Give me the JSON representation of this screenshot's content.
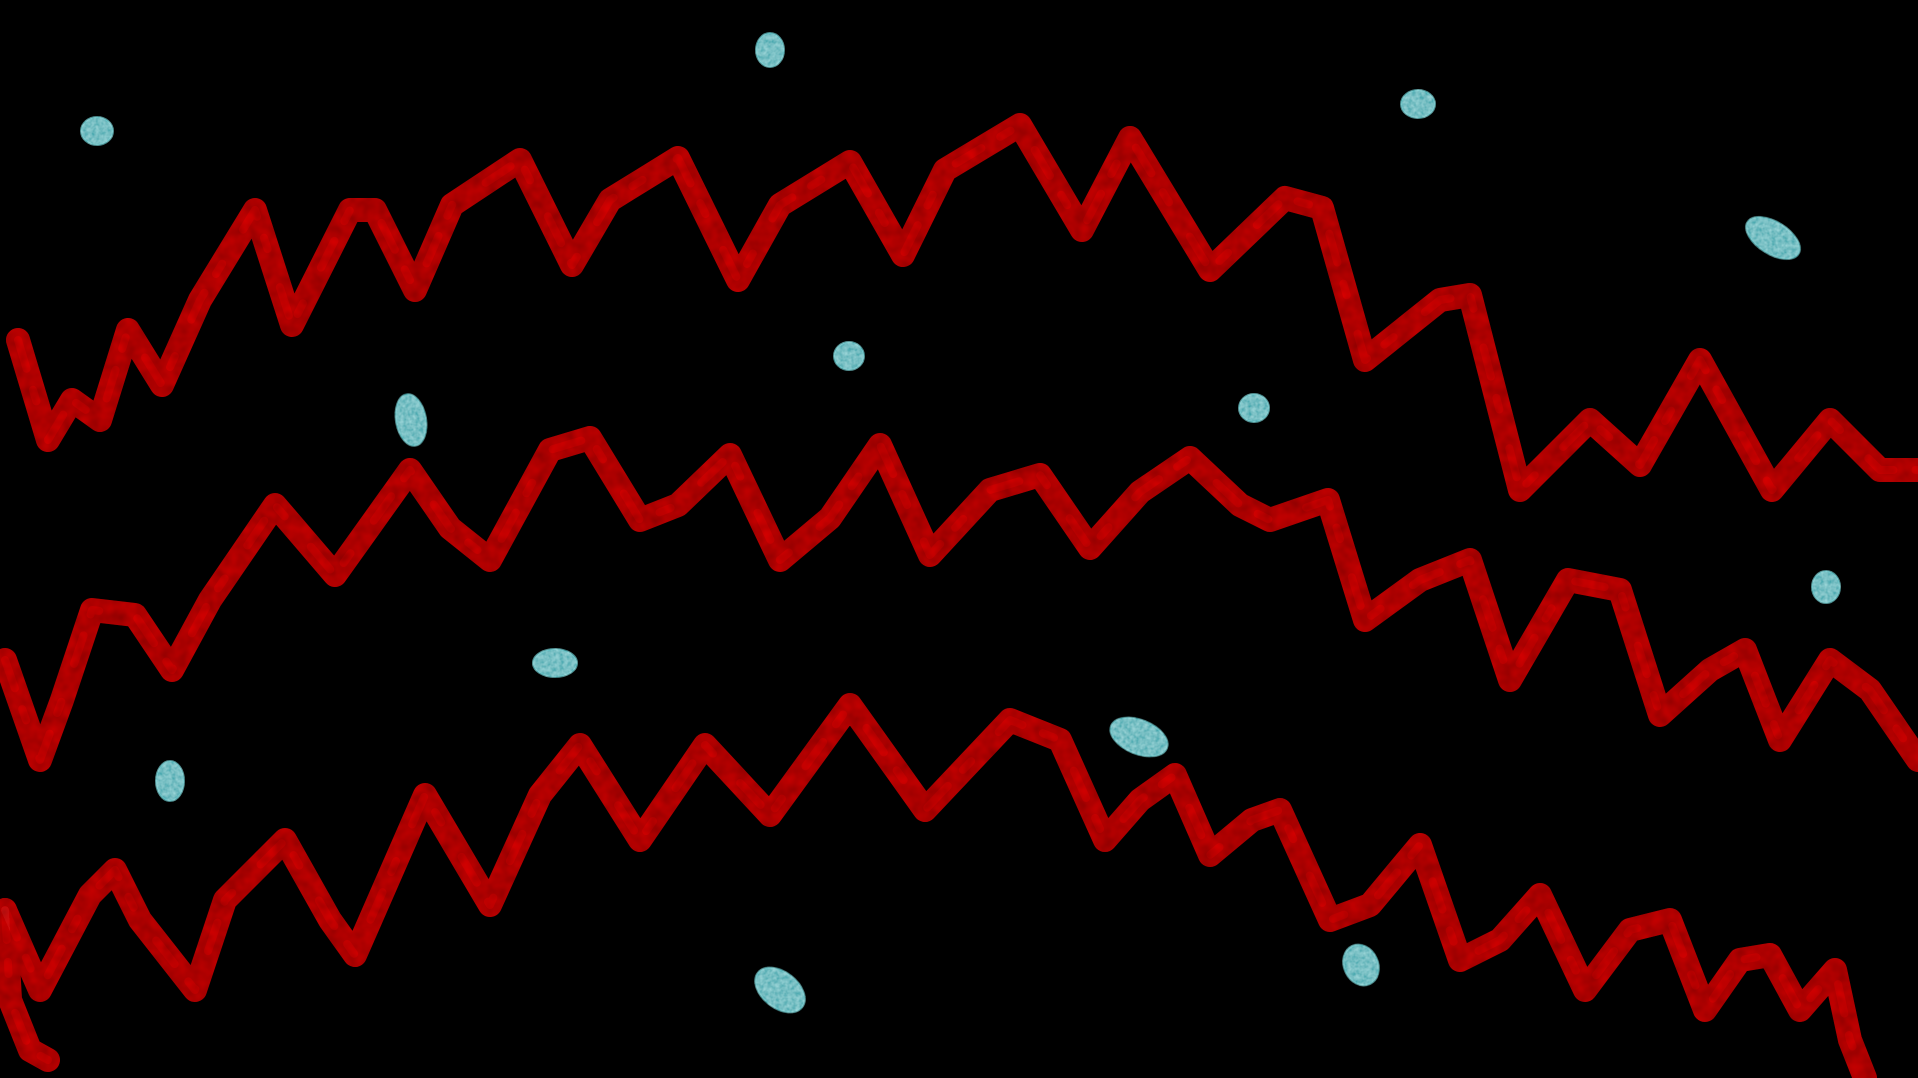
{
  "image": {
    "subject": "micrograph",
    "background_color": "#000000",
    "spirochete_color": "#c80a0a",
    "spirochete_highlight": "#ff1a1a",
    "bacteria_color": "#1f9ea6",
    "bacteria_highlight": "#3fc4c9"
  }
}
